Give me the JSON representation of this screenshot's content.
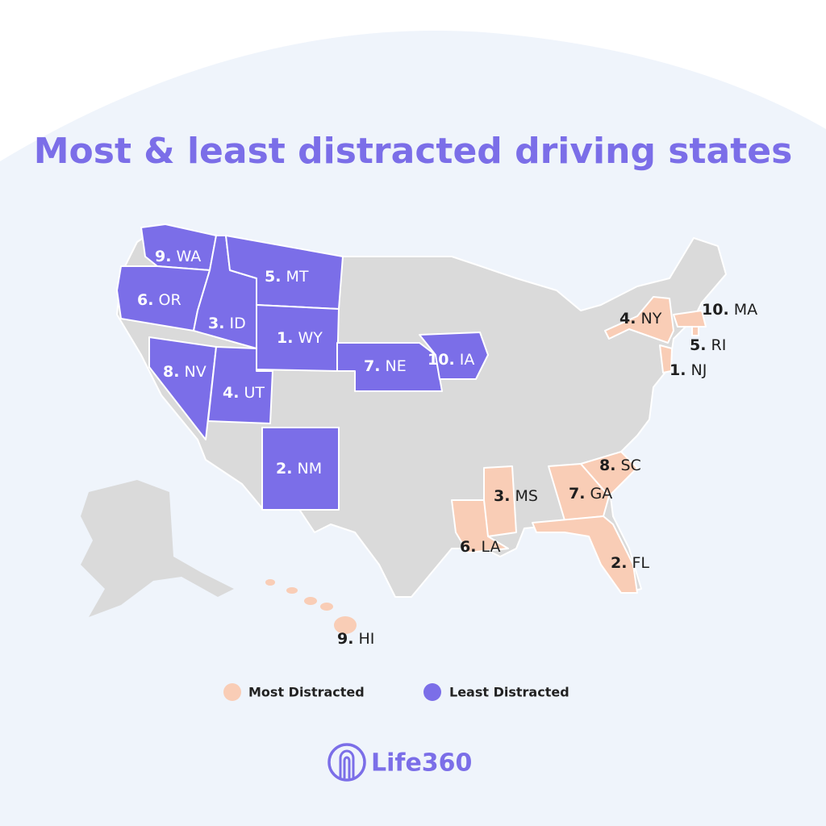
{
  "title": "Most & least distracted driving states",
  "most_distracted": {
    "color": "#f9cdb6",
    "label_color": "#1e1e1e",
    "legend": "Most Distracted",
    "states": [
      {
        "rank": "1.",
        "state": "NJ"
      },
      {
        "rank": "2.",
        "state": "FL"
      },
      {
        "rank": "3.",
        "state": "MS"
      },
      {
        "rank": "4.",
        "state": "NY"
      },
      {
        "rank": "5.",
        "state": "RI"
      },
      {
        "rank": "6.",
        "state": "LA"
      },
      {
        "rank": "7.",
        "state": "GA"
      },
      {
        "rank": "8.",
        "state": "SC"
      },
      {
        "rank": "9.",
        "state": "HI"
      },
      {
        "rank": "10.",
        "state": "MA"
      }
    ]
  },
  "least_distracted": {
    "color": "#7b6ee8",
    "label_color": "#ffffff",
    "legend": "Least Distracted",
    "states": [
      {
        "rank": "1.",
        "state": "WY"
      },
      {
        "rank": "2.",
        "state": "NM"
      },
      {
        "rank": "3.",
        "state": "ID"
      },
      {
        "rank": "4.",
        "state": "UT"
      },
      {
        "rank": "5.",
        "state": "MT"
      },
      {
        "rank": "6.",
        "state": "OR"
      },
      {
        "rank": "7.",
        "state": "NE"
      },
      {
        "rank": "8.",
        "state": "NV"
      },
      {
        "rank": "9.",
        "state": "WA"
      },
      {
        "rank": "10.",
        "state": "IA"
      }
    ]
  },
  "logo": "Life360"
}
